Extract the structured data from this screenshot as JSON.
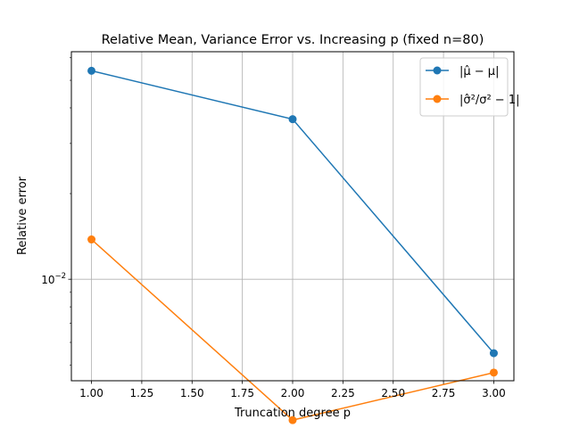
{
  "chart_data": {
    "type": "line",
    "title": "Relative Mean, Variance Error vs. Increasing p (fixed n=80)",
    "xlabel": "Truncation degree p",
    "ylabel": "Relative error",
    "xscale": "linear",
    "yscale": "log",
    "xlim": [
      0.9,
      3.1
    ],
    "ylim": [
      0.0044,
      0.063
    ],
    "xticks": [
      1.0,
      1.25,
      1.5,
      1.75,
      2.0,
      2.25,
      2.5,
      2.75,
      3.0
    ],
    "xtick_labels": [
      "1.00",
      "1.25",
      "1.50",
      "1.75",
      "2.00",
      "2.25",
      "2.50",
      "2.75",
      "3.00"
    ],
    "yticks": [
      0.01
    ],
    "ytick_labels": [
      "10",
      "−2"
    ],
    "grid": true,
    "legend_position": "top-right",
    "series": [
      {
        "name": "|μ̂ − μ|",
        "color": "#1f77b4",
        "marker": "circle",
        "x": [
          1.0,
          2.0,
          3.0
        ],
        "y": [
          0.054,
          0.0365,
          0.0055
        ]
      },
      {
        "name": "|σ̂²/σ² − 1|",
        "color": "#ff7f0e",
        "marker": "circle",
        "x": [
          1.0,
          2.0,
          3.0
        ],
        "y": [
          0.0138,
          0.0032,
          0.0047
        ]
      }
    ]
  }
}
